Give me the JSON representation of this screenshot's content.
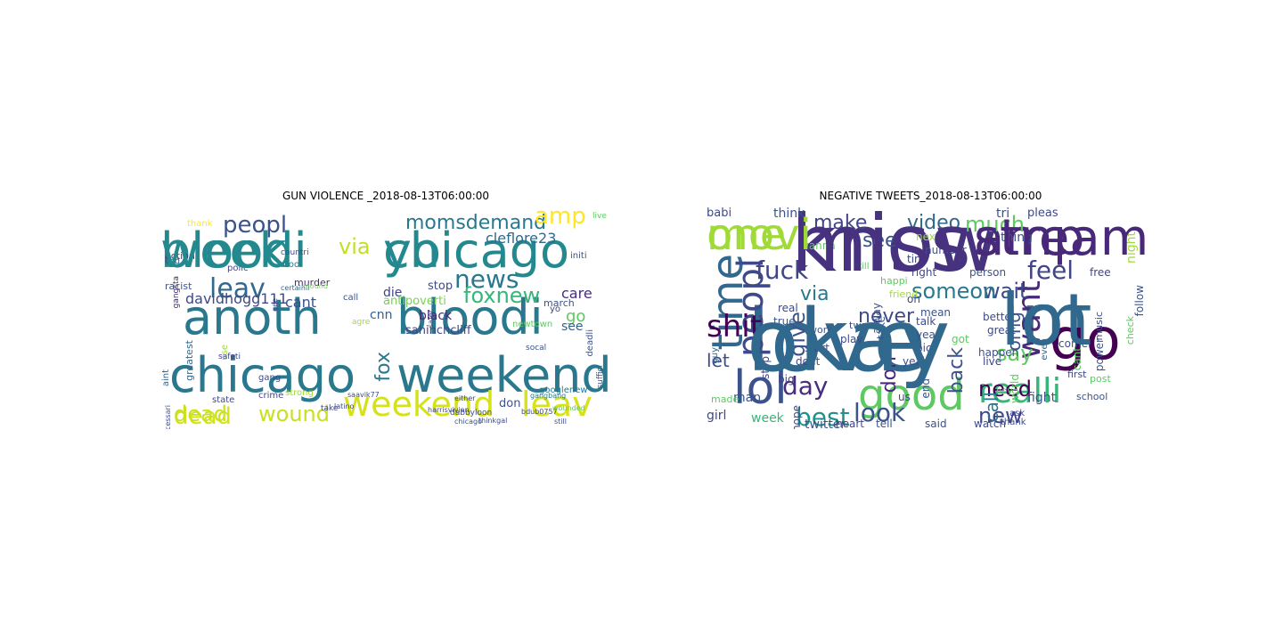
{
  "panels": {
    "left": {
      "title": "GUN VIOLENCE _2018-08-13T06:00:00",
      "words": [
        "bloodi",
        "chicago",
        "anoth",
        "bloodi",
        "chicago",
        "weekend",
        "dead",
        "leav",
        "peopl",
        "via",
        "momsdemand",
        "amp",
        "news",
        "foxnew",
        "weekend",
        "leav",
        "dead",
        "wound",
        "davidhogg111",
        "cleflore23",
        "fox",
        "die",
        "care",
        "go",
        "stop",
        "antipoverti",
        "black",
        "cnn",
        "sahinchcliff",
        "don",
        "see",
        "newtown",
        "action",
        "end",
        "thank",
        "racist",
        "polic",
        "murder",
        "tool",
        "call",
        "greatest",
        "state",
        "crime",
        "strong",
        "latino",
        "dabbyloon",
        "googlenew",
        "chicago",
        "gang",
        "cant",
        "certainli",
        "live",
        "initi",
        "deadli",
        "yo",
        "use",
        "safeti",
        "aint",
        "necessari",
        "gangsta",
        "saavik77",
        "take",
        "suffici",
        "bdub0757",
        "harrisvivian",
        "thinkgal",
        "still",
        "wounded",
        "gangbang",
        "socal",
        "safer",
        "either",
        "countri",
        "mound",
        "gee",
        "agre",
        "march",
        "week",
        "yo"
      ]
    },
    "right": {
      "title": "NEGATIVE TWEETS_2018-08-13T06:00:00",
      "words": [
        "love",
        "im",
        "know",
        "one",
        "amp",
        "go",
        "good",
        "lol",
        "time",
        "peopl",
        "want",
        "realli",
        "shit",
        "day",
        "fuck",
        "give",
        "make",
        "see",
        "video",
        "much",
        "best",
        "look",
        "need",
        "new",
        "feel",
        "say",
        "wait",
        "someon",
        "never",
        "via",
        "omg",
        "back",
        "don",
        "let",
        "call",
        "babi",
        "think",
        "wanna",
        "thing",
        "tri",
        "pleas",
        "night",
        "girl",
        "week",
        "man",
        "stop",
        "big",
        "twitter",
        "heart",
        "tell",
        "said",
        "watch",
        "live",
        "fight",
        "world",
        "even",
        "come",
        "music",
        "follow",
        "check",
        "free",
        "thank",
        "happen",
        "dont",
        "start",
        "work",
        "play",
        "tweet",
        "year",
        "pic",
        "yeah",
        "mean",
        "got",
        "oh",
        "us",
        "take",
        "tire",
        "right",
        "person",
        "number",
        "next",
        "friend",
        "happi",
        "alway",
        "hope",
        "real",
        "true",
        "made",
        "guy",
        "end",
        "ask",
        "power",
        "school",
        "post",
        "cant",
        "first",
        "still",
        "talk",
        "better",
        "great",
        "boy",
        "okay",
        "lot",
        "miss",
        "movi",
        "stream"
      ]
    }
  }
}
